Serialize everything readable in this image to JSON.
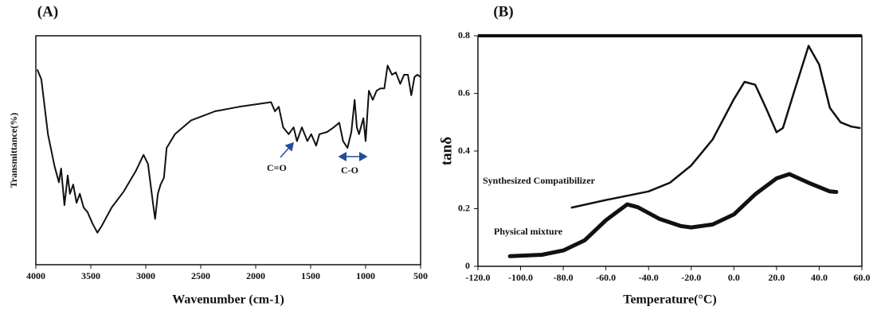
{
  "chart_data": [
    {
      "type": "line",
      "title": "(A)",
      "x_label": "Wavenumber (cm-1)",
      "y_label": "Transmittance(%)",
      "x": [
        3985,
        3950,
        3890,
        3830,
        3790,
        3770,
        3740,
        3710,
        3690,
        3660,
        3630,
        3600,
        3565,
        3530,
        3485,
        3440,
        3400,
        3310,
        3200,
        3090,
        3020,
        2980,
        2935,
        2915,
        2890,
        2865,
        2835,
        2810,
        2735,
        2590,
        2370,
        2150,
        2005,
        1860,
        1825,
        1790,
        1750,
        1700,
        1655,
        1625,
        1580,
        1530,
        1495,
        1450,
        1420,
        1350,
        1290,
        1240,
        1205,
        1165,
        1130,
        1100,
        1080,
        1060,
        1020,
        1000,
        970,
        935,
        900,
        865,
        830,
        800,
        760,
        725,
        685,
        650,
        615,
        585,
        555,
        530,
        500
      ],
      "values": [
        85,
        81,
        57,
        43,
        36,
        42,
        26,
        39,
        31,
        35,
        27,
        31,
        25,
        23,
        18,
        14,
        17,
        25,
        32,
        41,
        48,
        44,
        27,
        20,
        31,
        35,
        38,
        51,
        57,
        63,
        67,
        69,
        70,
        71,
        67,
        69,
        60,
        57,
        60,
        54,
        60,
        54,
        57,
        52,
        57,
        58,
        60,
        62,
        54,
        51,
        58,
        72,
        60,
        57,
        64,
        54,
        76,
        72,
        76,
        77,
        77,
        87,
        83,
        84,
        79,
        83,
        83,
        74,
        82,
        83,
        82
      ],
      "color": "#111111",
      "xlim": [
        4000,
        500
      ],
      "xticks": [
        4000,
        3500,
        3000,
        2500,
        2000,
        1500,
        1000,
        500
      ],
      "ylim": [
        0,
        100
      ],
      "annotations": [
        "C=O",
        "C-O"
      ]
    },
    {
      "type": "line",
      "title": "(B)",
      "x_label": "Temperature(°C)",
      "y_label": "tanδ",
      "series": [
        {
          "name": "Synthesized Compatibilizer",
          "color": "#111111",
          "width": 2.5,
          "x": [
            -76,
            -60,
            -40,
            -30,
            -20,
            -10,
            0,
            5,
            10,
            15,
            20,
            23,
            28,
            35,
            40,
            45,
            50,
            55,
            59
          ],
          "values": [
            0.204,
            0.23,
            0.26,
            0.29,
            0.35,
            0.44,
            0.58,
            0.64,
            0.63,
            0.55,
            0.465,
            0.48,
            0.6,
            0.765,
            0.7,
            0.55,
            0.5,
            0.485,
            0.48
          ]
        },
        {
          "name": "Physical mixture",
          "color": "#111111",
          "width": 5,
          "x": [
            -105,
            -90,
            -80,
            -70,
            -60,
            -50,
            -45,
            -35,
            -25,
            -20,
            -10,
            0,
            10,
            20,
            26,
            35,
            45,
            48
          ],
          "values": [
            0.035,
            0.04,
            0.055,
            0.09,
            0.16,
            0.215,
            0.205,
            0.165,
            0.14,
            0.135,
            0.145,
            0.18,
            0.25,
            0.305,
            0.32,
            0.29,
            0.26,
            0.258
          ]
        }
      ],
      "xlim": [
        -120,
        60
      ],
      "xticks": [
        {
          "value": -120,
          "label": "-120.0"
        },
        {
          "value": -100,
          "label": "-100.0"
        },
        {
          "value": -80,
          "label": "-80.0"
        },
        {
          "value": -60,
          "label": "-60.0"
        },
        {
          "value": -40,
          "label": "-40.0"
        },
        {
          "value": -20,
          "label": "-20.0"
        },
        {
          "value": 0,
          "label": "0.0"
        },
        {
          "value": 20,
          "label": "20.0"
        },
        {
          "value": 40,
          "label": "40.0"
        },
        {
          "value": 60,
          "label": "60.0"
        }
      ],
      "ylim": [
        0,
        0.8
      ],
      "yticks": [
        0,
        0.2,
        0.4,
        0.6,
        0.8
      ]
    }
  ]
}
